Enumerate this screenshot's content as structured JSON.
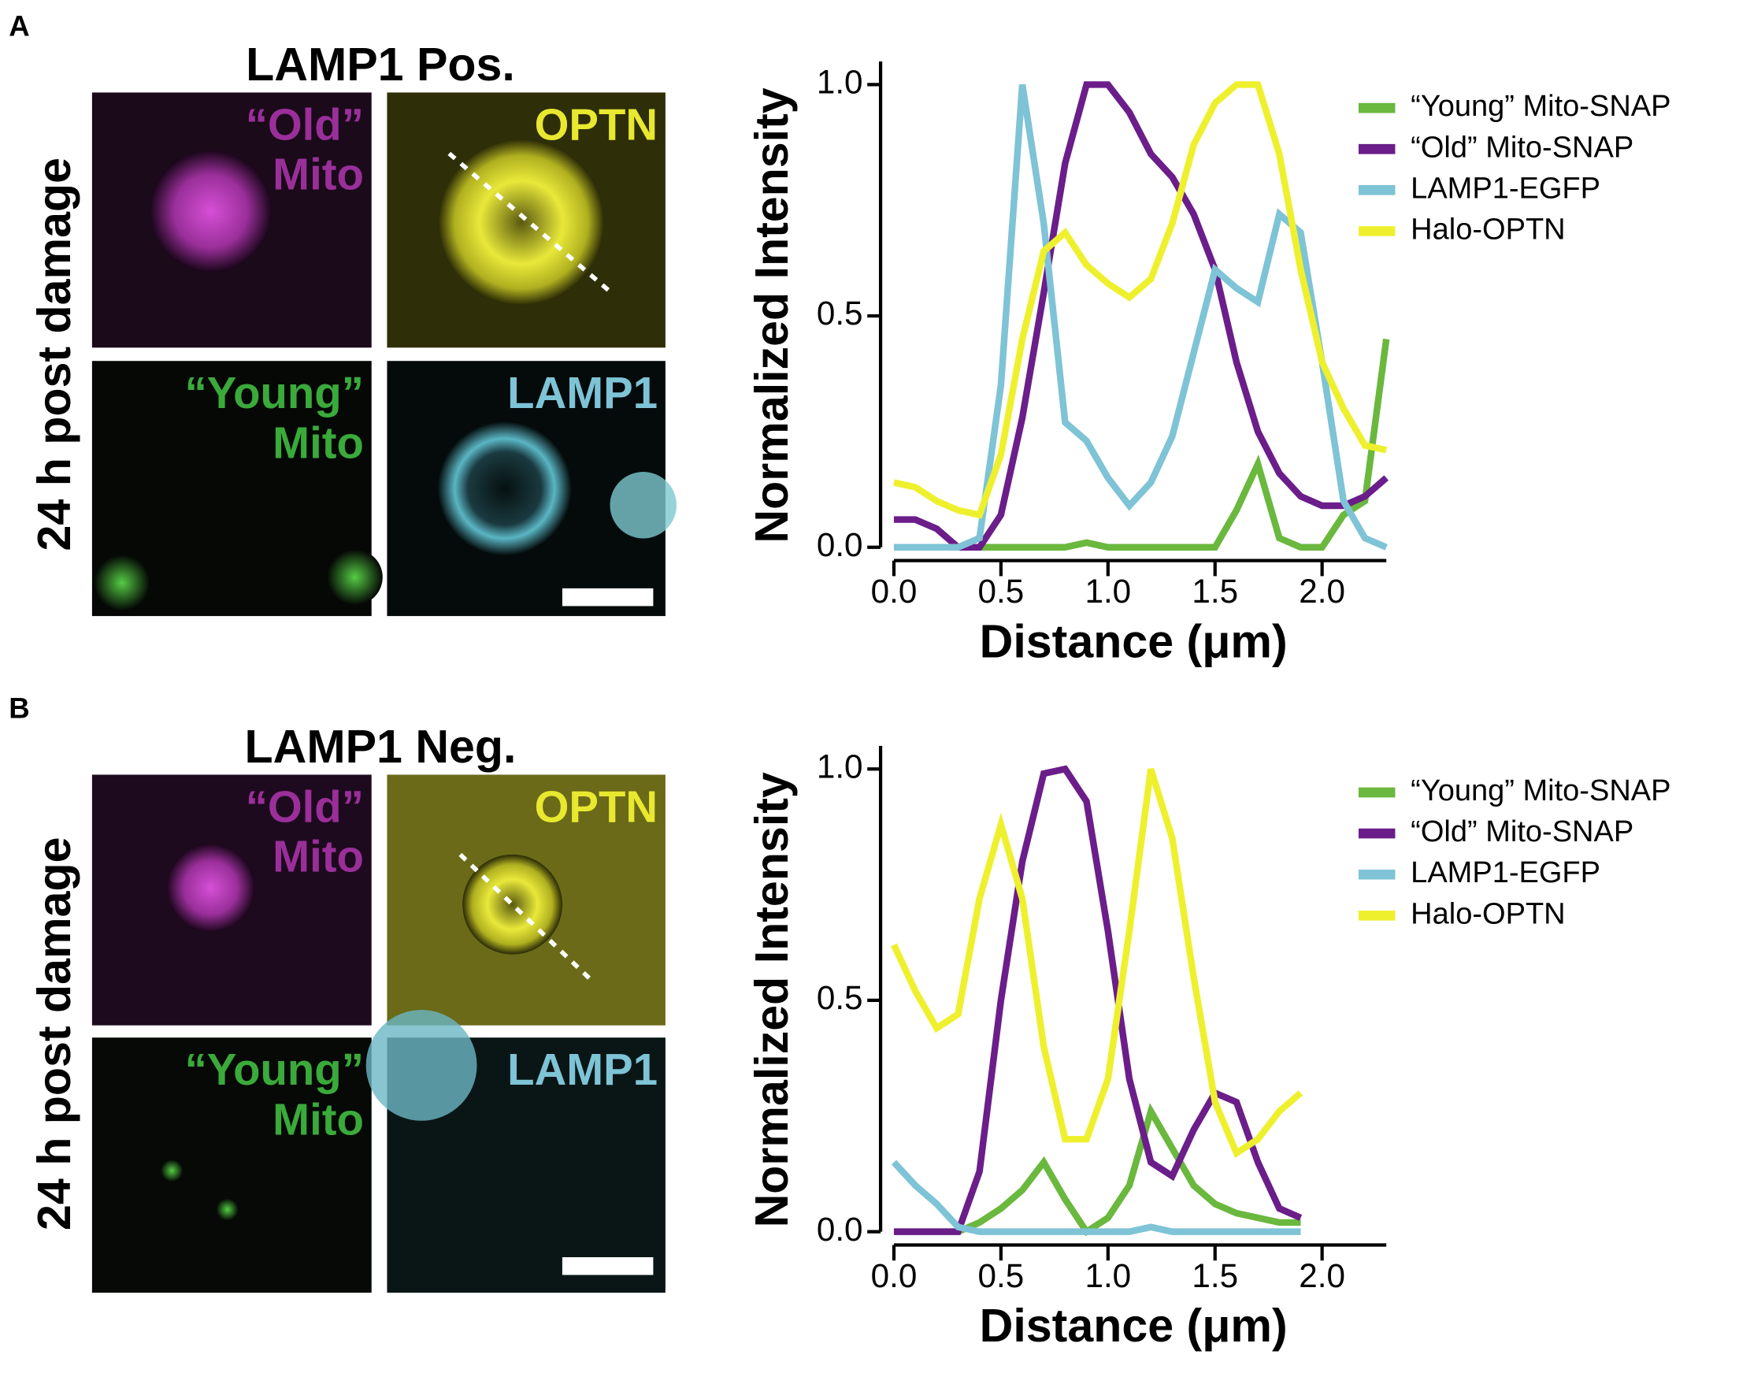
{
  "panels": [
    {
      "label": "A",
      "title": "LAMP1 Pos.",
      "row_label": "24 h post damage",
      "images": [
        {
          "lines": [
            "“Old”",
            "Mito"
          ]
        },
        {
          "lines": [
            "OPTN"
          ]
        },
        {
          "lines": [
            "“Young”",
            "Mito"
          ]
        },
        {
          "lines": [
            "LAMP1"
          ]
        }
      ]
    },
    {
      "label": "B",
      "title": "LAMP1 Neg.",
      "row_label": "24 h post damage",
      "images": [
        {
          "lines": [
            "“Old”",
            "Mito"
          ]
        },
        {
          "lines": [
            "OPTN"
          ]
        },
        {
          "lines": [
            "“Young”",
            "Mito"
          ]
        },
        {
          "lines": [
            "LAMP1"
          ]
        }
      ]
    }
  ],
  "chart_data": [
    {
      "type": "line",
      "xlabel": "Distance (μm)",
      "ylabel": "Normalized Intensity",
      "x": [
        0,
        0.1,
        0.2,
        0.3,
        0.4,
        0.5,
        0.6,
        0.7,
        0.8,
        0.9,
        1.0,
        1.1,
        1.2,
        1.3,
        1.4,
        1.5,
        1.6,
        1.7,
        1.8,
        1.9,
        2.0,
        2.1,
        2.2,
        2.3
      ],
      "xlim": [
        0,
        2.3
      ],
      "ylim": [
        0,
        1.05
      ],
      "xticks": [
        {
          "value": 0,
          "label": "0.0"
        },
        0.5,
        {
          "value": 1,
          "label": "1.0"
        },
        1.5,
        {
          "value": 2,
          "label": "2.0"
        }
      ],
      "yticks": [
        {
          "value": 0,
          "label": "0.0"
        },
        0.5,
        {
          "value": 1,
          "label": "1.0"
        }
      ],
      "legend": "upper right",
      "series": [
        {
          "name": "“Young” Mito-SNAP",
          "color": "#6ab83e",
          "values": [
            0,
            0,
            0,
            0,
            0,
            0,
            0,
            0,
            0,
            0.01,
            0,
            0,
            0,
            0,
            0,
            0,
            0.08,
            0.18,
            0.02,
            0,
            0,
            0.07,
            0.1,
            0.45
          ]
        },
        {
          "name": "“Old” Mito-SNAP",
          "color": "#6b1d8a",
          "values": [
            0.06,
            0.06,
            0.04,
            0,
            0,
            0.07,
            0.28,
            0.55,
            0.83,
            1.0,
            1.0,
            0.94,
            0.85,
            0.8,
            0.72,
            0.6,
            0.4,
            0.25,
            0.16,
            0.11,
            0.09,
            0.09,
            0.11,
            0.15
          ]
        },
        {
          "name": "LAMP1-EGFP",
          "color": "#7ec3d6",
          "values": [
            0,
            0,
            0,
            0,
            0.02,
            0.35,
            1.0,
            0.7,
            0.27,
            0.23,
            0.15,
            0.09,
            0.14,
            0.24,
            0.42,
            0.6,
            0.56,
            0.53,
            0.72,
            0.68,
            0.4,
            0.1,
            0.02,
            0
          ]
        },
        {
          "name": "Halo-OPTN",
          "color": "#eef02e",
          "values": [
            0.14,
            0.13,
            0.1,
            0.08,
            0.07,
            0.2,
            0.45,
            0.64,
            0.68,
            0.61,
            0.57,
            0.54,
            0.58,
            0.7,
            0.87,
            0.96,
            1.0,
            1.0,
            0.85,
            0.6,
            0.4,
            0.3,
            0.22,
            0.21
          ]
        }
      ]
    },
    {
      "type": "line",
      "xlabel": "Distance (μm)",
      "ylabel": "Normalized Intensity",
      "x": [
        0,
        0.1,
        0.2,
        0.3,
        0.4,
        0.5,
        0.6,
        0.7,
        0.8,
        0.9,
        1.0,
        1.1,
        1.2,
        1.3,
        1.4,
        1.5,
        1.6,
        1.7,
        1.8,
        1.9
      ],
      "xlim": [
        0,
        2.3
      ],
      "ylim": [
        0,
        1.05
      ],
      "xticks": [
        {
          "value": 0,
          "label": "0.0"
        },
        0.5,
        {
          "value": 1,
          "label": "1.0"
        },
        1.5,
        {
          "value": 2,
          "label": "2.0"
        }
      ],
      "yticks": [
        {
          "value": 0,
          "label": "0.0"
        },
        0.5,
        {
          "value": 1,
          "label": "1.0"
        }
      ],
      "legend": "upper right",
      "series": [
        {
          "name": "“Young” Mito-SNAP",
          "color": "#6ab83e",
          "values": [
            0,
            0,
            0,
            0,
            0.02,
            0.05,
            0.09,
            0.15,
            0.07,
            0,
            0.03,
            0.1,
            0.26,
            0.18,
            0.1,
            0.06,
            0.04,
            0.03,
            0.02,
            0.02
          ]
        },
        {
          "name": "“Old” Mito-SNAP",
          "color": "#6b1d8a",
          "values": [
            0,
            0,
            0,
            0,
            0.13,
            0.5,
            0.8,
            0.99,
            1.0,
            0.93,
            0.65,
            0.33,
            0.15,
            0.12,
            0.22,
            0.3,
            0.28,
            0.15,
            0.05,
            0.03
          ]
        },
        {
          "name": "LAMP1-EGFP",
          "color": "#7ec3d6",
          "values": [
            0.15,
            0.1,
            0.06,
            0.01,
            0,
            0,
            0,
            0,
            0,
            0,
            0,
            0,
            0.01,
            0,
            0,
            0,
            0,
            0,
            0,
            0
          ]
        },
        {
          "name": "Halo-OPTN",
          "color": "#eef02e",
          "values": [
            0.62,
            0.52,
            0.44,
            0.47,
            0.72,
            0.88,
            0.72,
            0.4,
            0.2,
            0.2,
            0.33,
            0.65,
            1.0,
            0.85,
            0.55,
            0.28,
            0.17,
            0.2,
            0.26,
            0.3
          ]
        }
      ]
    }
  ]
}
